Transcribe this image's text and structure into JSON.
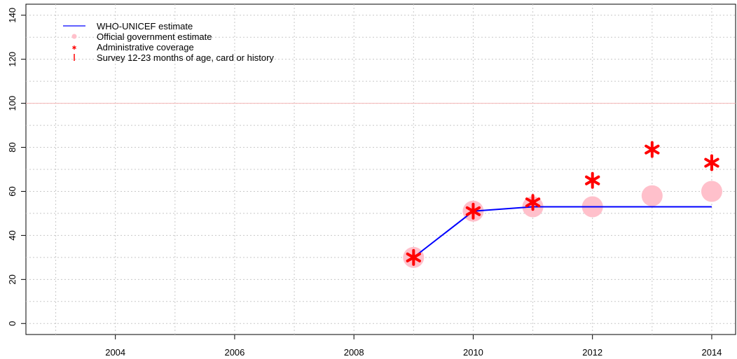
{
  "chart_data": {
    "type": "line",
    "title": "",
    "xlabel": "",
    "ylabel": "",
    "xlim": [
      2002.5,
      2014.4
    ],
    "ylim": [
      -5,
      145
    ],
    "x_ticks": [
      2004,
      2006,
      2008,
      2010,
      2012,
      2014
    ],
    "y_ticks": [
      0,
      20,
      40,
      60,
      80,
      100,
      120,
      140
    ],
    "grid": true,
    "reference_line": {
      "y": 100,
      "color": "#f4b6b6"
    },
    "legend": {
      "position": "top-left",
      "entries": [
        "WHO-UNICEF estimate",
        "Official government estimate",
        "Administrative coverage",
        "Survey 12-23 months of age, card or history"
      ]
    },
    "series": [
      {
        "name": "WHO-UNICEF estimate",
        "kind": "line",
        "color": "#0000ff",
        "x": [
          2009,
          2010,
          2011,
          2012,
          2013,
          2014
        ],
        "y": [
          30,
          51,
          53,
          53,
          53,
          53
        ]
      },
      {
        "name": "Official government estimate",
        "kind": "points",
        "color": "#ffc0cb",
        "x": [
          2009,
          2010,
          2011,
          2012,
          2013,
          2014
        ],
        "y": [
          30,
          51,
          53,
          53,
          58,
          60
        ]
      },
      {
        "name": "Administrative coverage",
        "kind": "asterisk",
        "color": "#ff0000",
        "x": [
          2009,
          2010,
          2011,
          2012,
          2013,
          2014
        ],
        "y": [
          30,
          51,
          55,
          65,
          79,
          73
        ]
      },
      {
        "name": "Survey 12-23 months of age, card or history",
        "kind": "bar-marker",
        "color": "#ff0000",
        "x": [],
        "y": []
      }
    ]
  }
}
